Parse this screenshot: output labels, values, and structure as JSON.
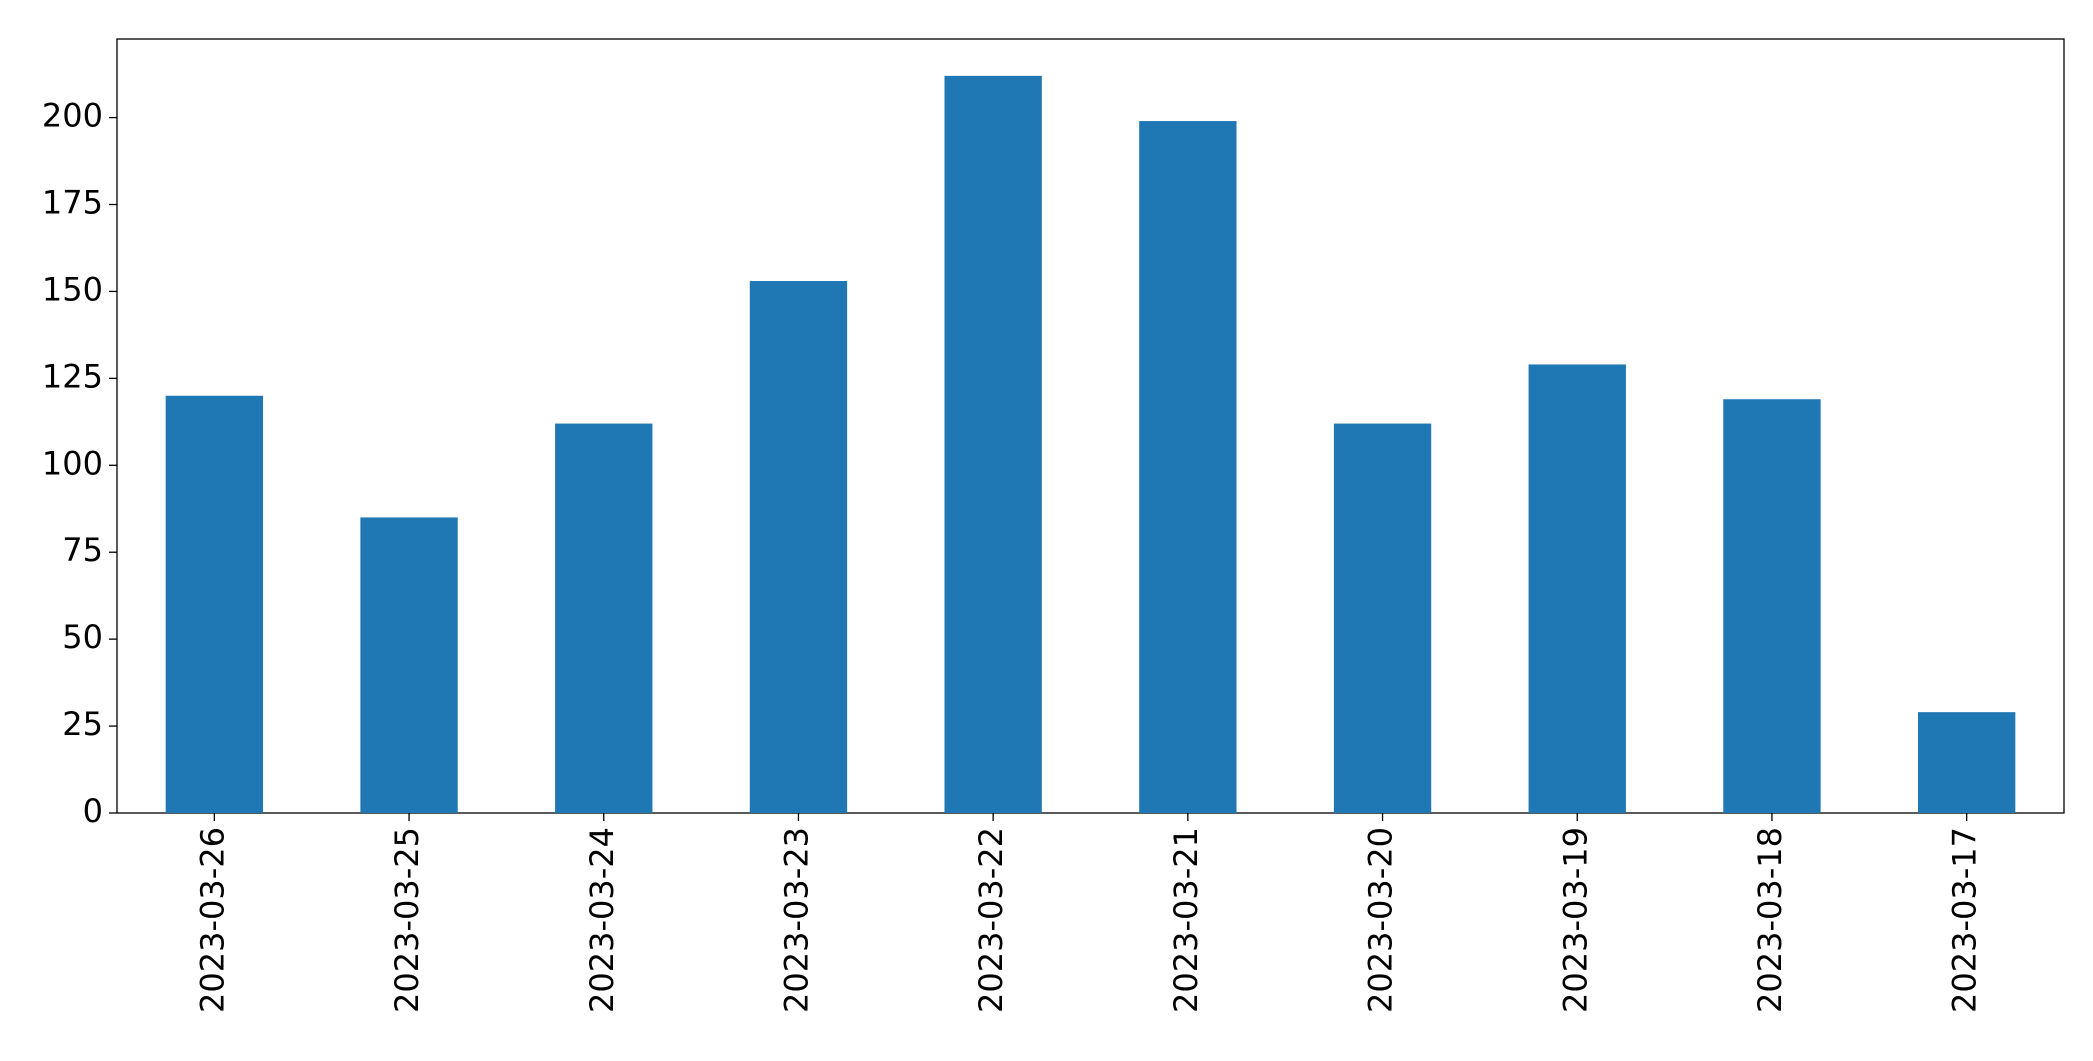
{
  "chart_data": {
    "type": "bar",
    "categories": [
      "2023-03-26",
      "2023-03-25",
      "2023-03-24",
      "2023-03-23",
      "2023-03-22",
      "2023-03-21",
      "2023-03-20",
      "2023-03-19",
      "2023-03-18",
      "2023-03-17"
    ],
    "values": [
      120,
      85,
      112,
      153,
      212,
      199,
      112,
      129,
      119,
      29
    ],
    "color": "#1f77b4",
    "ylim": [
      0,
      222.6
    ],
    "yticks": [
      0,
      25,
      50,
      75,
      100,
      125,
      150,
      175,
      200
    ],
    "grid": false
  }
}
